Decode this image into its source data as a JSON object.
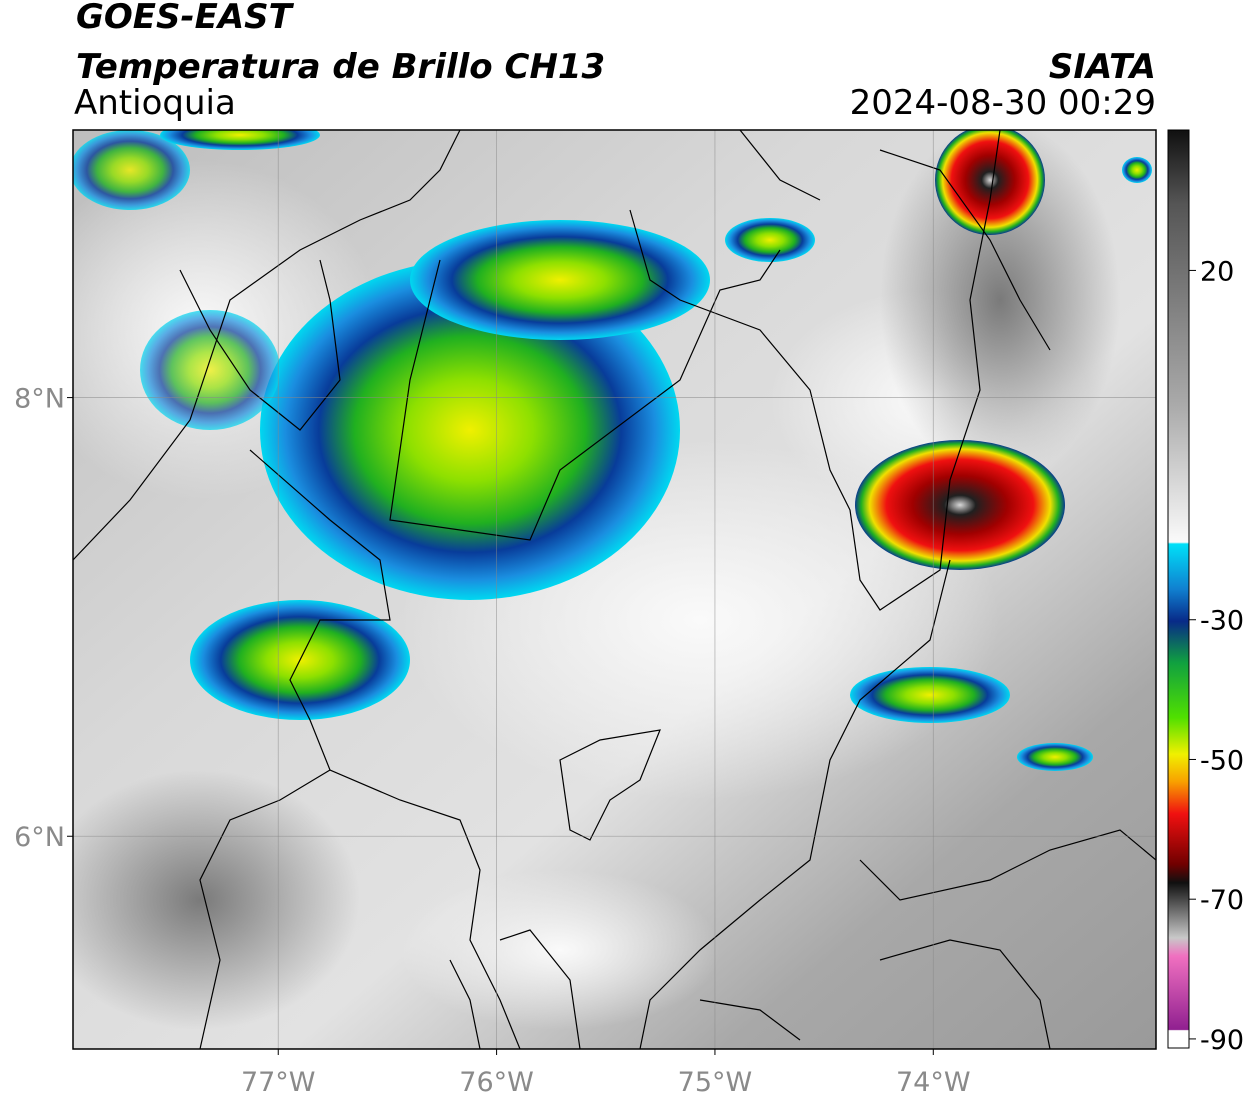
{
  "header": {
    "title": "GOES-EAST",
    "subtitle": "Temperatura de Brillo CH13",
    "region": "Antioquia",
    "source": "SIATA",
    "datetime": "2024-08-30 00:29"
  },
  "map": {
    "xlim": [
      -77.94,
      -72.98
    ],
    "ylim": [
      5.03,
      9.22
    ],
    "xticks": [
      {
        "value": -77,
        "label": "77°W"
      },
      {
        "value": -76,
        "label": "76°W"
      },
      {
        "value": -75,
        "label": "75°W"
      },
      {
        "value": -74,
        "label": "74°W"
      }
    ],
    "yticks": [
      {
        "value": 6,
        "label": "6°N"
      },
      {
        "value": 8,
        "label": "8°N"
      }
    ],
    "grid": true
  },
  "colorbar": {
    "lim": [
      -91.3,
      40.1
    ],
    "ticks": [
      20,
      -30,
      -50,
      -70,
      -90
    ]
  }
}
